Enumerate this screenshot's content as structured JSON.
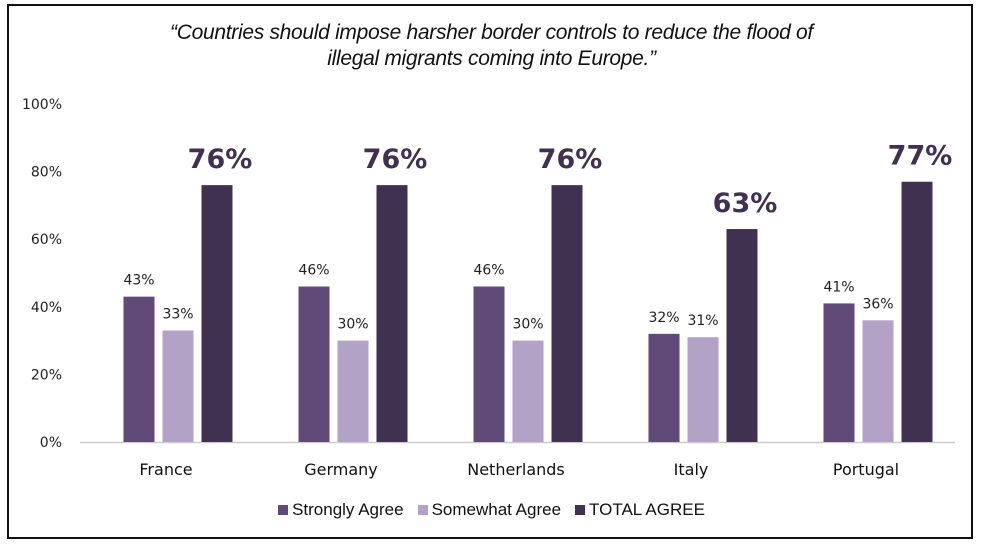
{
  "chart_data": {
    "type": "bar",
    "title_lines": [
      "“Countries should impose harsher border controls to reduce the flood of",
      "illegal migrants coming into Europe.”"
    ],
    "xlabel": "",
    "ylabel": "",
    "ylim": [
      0,
      100
    ],
    "yticks": [
      0,
      20,
      40,
      60,
      80,
      100
    ],
    "ytick_labels": [
      "0%",
      "20%",
      "40%",
      "60%",
      "80%",
      "100%"
    ],
    "grid": false,
    "legend_position": "bottom",
    "categories": [
      "France",
      "Germany",
      "Netherlands",
      "Italy",
      "Portugal"
    ],
    "series": [
      {
        "name": "Strongly Agree",
        "color": "#5f4a78",
        "values": [
          43,
          46,
          46,
          32,
          41
        ],
        "labels": [
          "43%",
          "46%",
          "46%",
          "32%",
          "41%"
        ]
      },
      {
        "name": "Somewhat Agree",
        "color": "#b2a2c6",
        "values": [
          33,
          30,
          30,
          31,
          36
        ],
        "labels": [
          "33%",
          "30%",
          "30%",
          "31%",
          "36%"
        ]
      },
      {
        "name": "TOTAL AGREE",
        "color": "#413150",
        "values": [
          76,
          76,
          76,
          63,
          77
        ],
        "labels": [
          "76%",
          "76%",
          "76%",
          "63%",
          "77%"
        ]
      }
    ]
  },
  "colors": {
    "axis_line": "#cccccc",
    "big_label": "#413150"
  }
}
